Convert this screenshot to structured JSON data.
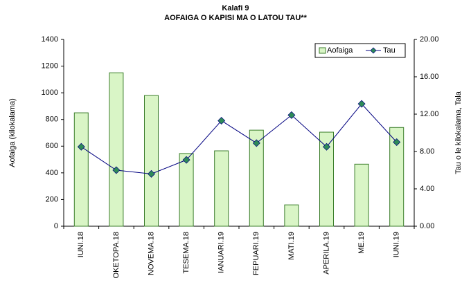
{
  "chart_data": {
    "type": "bar_line",
    "title": "Kalafi 9",
    "subtitle": "AOFAIGA O KAPISI MA O LATOU TAU**",
    "y_label": "Aofaiga (kilokalama)",
    "y2_label": "Tau o le kilokalama, Tala",
    "categories": [
      "IUNI.18",
      "OKETOPA.18",
      "NOVEMA.18",
      "TESEMA.18",
      "IANUARI.19",
      "FEPUARI.19",
      "MATI.19",
      "APERILA.19",
      "ME.19",
      "IUNI.19"
    ],
    "series": [
      {
        "name": "Aofaiga",
        "type": "bar",
        "color": "#d9f5c6",
        "edge": "#3a7d2a",
        "values": [
          850,
          1150,
          980,
          545,
          565,
          720,
          160,
          705,
          465,
          740
        ]
      },
      {
        "name": "Tau",
        "type": "line",
        "axis": "y2",
        "color": "#000080",
        "marker_color": "#2e8b57",
        "values": [
          8.5,
          6.0,
          5.6,
          7.1,
          11.3,
          8.9,
          11.9,
          8.5,
          13.1,
          9.0
        ]
      }
    ],
    "ylim": [
      0,
      1400
    ],
    "yticks": [
      0,
      200,
      400,
      600,
      800,
      1000,
      1200,
      1400
    ],
    "y2lim": [
      0,
      20
    ],
    "y2ticks": [
      {
        "value": 0,
        "label": "0.00"
      },
      {
        "value": 4,
        "label": "4.00"
      },
      {
        "value": 8,
        "label": "8.00"
      },
      {
        "value": 12,
        "label": "12.00"
      },
      {
        "value": 16,
        "label": "16.00"
      },
      {
        "value": 20,
        "label": "20.00"
      }
    ],
    "legend": "upper right",
    "grid": false
  }
}
